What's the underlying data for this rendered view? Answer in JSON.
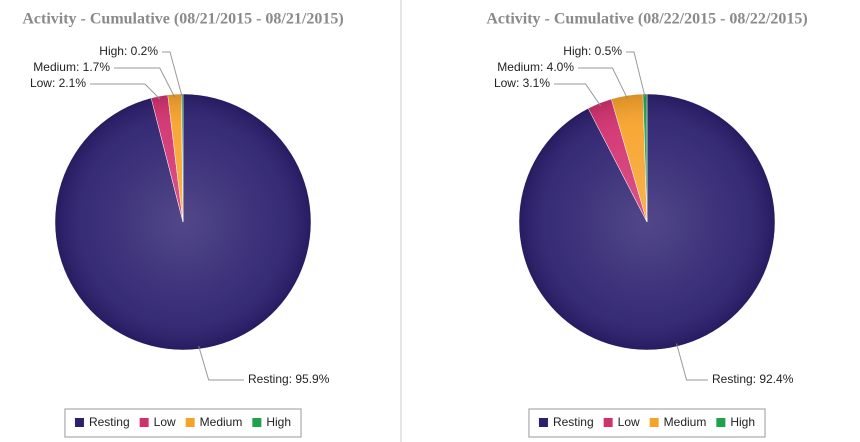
{
  "chart_data": [
    {
      "type": "pie",
      "title": "Activity - Cumulative (08/21/2015 - 08/21/2015)",
      "categories": [
        "Resting",
        "Low",
        "Medium",
        "High"
      ],
      "values": [
        95.9,
        2.1,
        1.7,
        0.2
      ],
      "value_labels": [
        "Resting: 95.9%",
        "Low: 2.1%",
        "Medium: 1.7%",
        "High: 0.2%"
      ],
      "colors": [
        "#2b1f6e",
        "#d2306e",
        "#f7a229",
        "#1ea34c"
      ]
    },
    {
      "type": "pie",
      "title": "Activity - Cumulative (08/22/2015 - 08/22/2015)",
      "categories": [
        "Resting",
        "Low",
        "Medium",
        "High"
      ],
      "values": [
        92.4,
        3.1,
        4.0,
        0.5
      ],
      "value_labels": [
        "Resting: 92.4%",
        "Low: 3.1%",
        "Medium: 4.0%",
        "High: 0.5%"
      ],
      "colors": [
        "#2b1f6e",
        "#d2306e",
        "#f7a229",
        "#1ea34c"
      ]
    }
  ]
}
